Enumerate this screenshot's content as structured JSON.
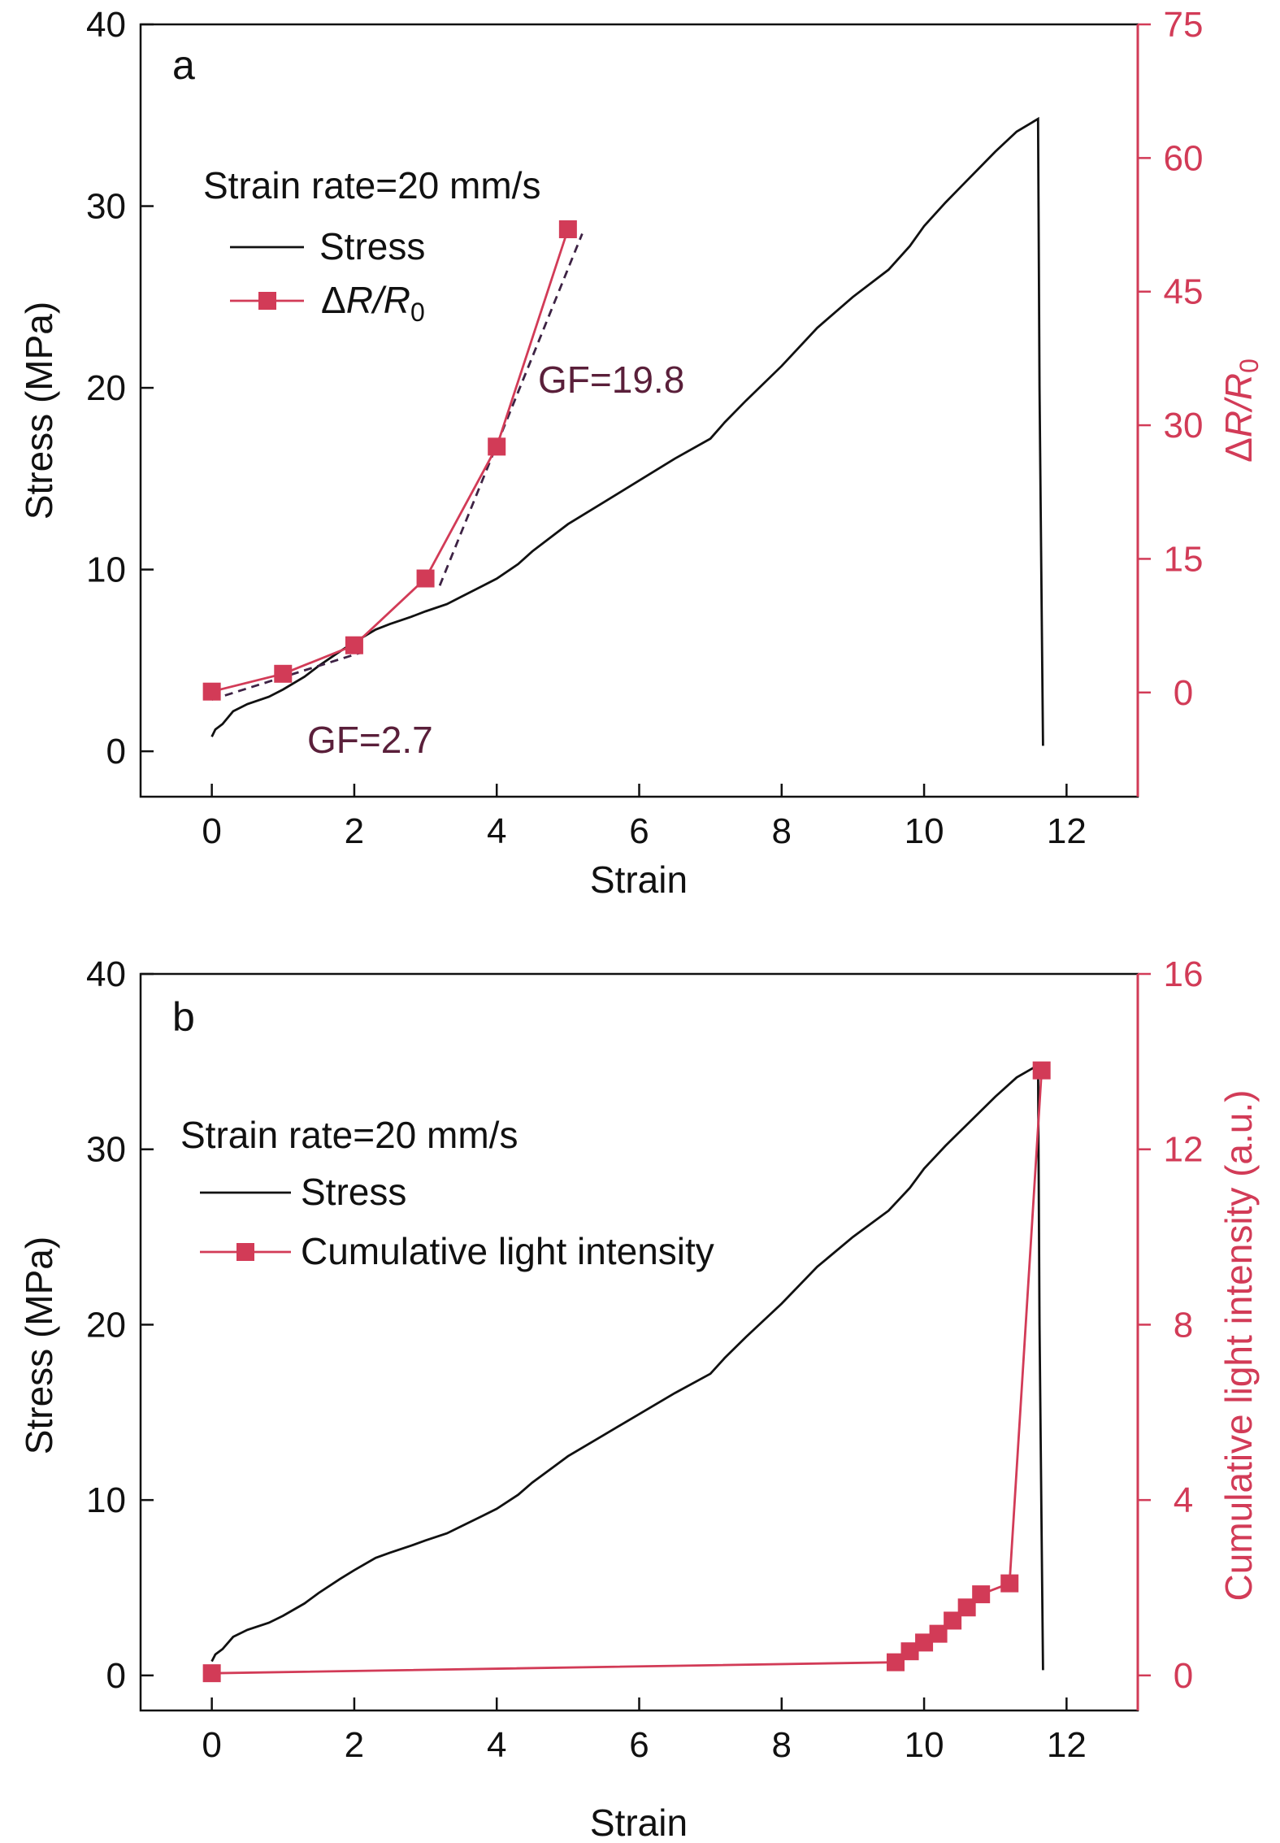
{
  "colors": {
    "stress": "#111111",
    "series": "#d23b57",
    "dashed": "#3d2244",
    "annotation": "#5a1f3a"
  },
  "chart_data": [
    {
      "panel_label": "a",
      "type": "line",
      "xlabel": "Strain",
      "ylabel": "Stress (MPa)",
      "y2label_parts": [
        "Δ",
        "R",
        "/",
        "R",
        "0"
      ],
      "xlim": [
        -1,
        13
      ],
      "ylim": [
        -2.5,
        40
      ],
      "y2lim": [
        -11.7,
        75
      ],
      "xticks": [
        0,
        2,
        4,
        6,
        8,
        10,
        12
      ],
      "yticks": [
        0,
        10,
        20,
        30,
        40
      ],
      "y2ticks": [
        0,
        15,
        30,
        45,
        60,
        75
      ],
      "legend": {
        "title": "Strain rate=20 mm/s",
        "stress_label": "Stress",
        "series_label_parts": [
          "Δ",
          "R",
          "/",
          "R",
          "0"
        ]
      },
      "stress_series": {
        "name": "Stress",
        "x": [
          0,
          0.05,
          0.15,
          0.3,
          0.5,
          0.8,
          1.0,
          1.3,
          1.5,
          1.8,
          2.0,
          2.3,
          2.5,
          2.8,
          3.0,
          3.3,
          3.5,
          3.8,
          4.0,
          4.3,
          4.5,
          4.8,
          5.0,
          5.5,
          6.0,
          6.5,
          7.0,
          7.2,
          7.5,
          8.0,
          8.5,
          9.0,
          9.5,
          9.8,
          10.0,
          10.3,
          10.5,
          10.8,
          11.0,
          11.3,
          11.6,
          11.62,
          11.65,
          11.67
        ],
        "y": [
          0.8,
          1.2,
          1.5,
          2.2,
          2.6,
          3.0,
          3.4,
          4.1,
          4.7,
          5.5,
          6.0,
          6.7,
          7.0,
          7.4,
          7.7,
          8.1,
          8.5,
          9.1,
          9.5,
          10.3,
          11.0,
          11.9,
          12.5,
          13.7,
          14.9,
          16.1,
          17.2,
          18.1,
          19.3,
          21.2,
          23.3,
          25.0,
          26.5,
          27.8,
          28.9,
          30.2,
          31.0,
          32.2,
          33.0,
          34.1,
          34.8,
          20.0,
          8.0,
          0.3
        ]
      },
      "resistance_series": {
        "name": "ΔR/R0",
        "x": [
          0,
          1,
          2,
          3,
          4,
          5
        ],
        "y": [
          0.1,
          2.1,
          5.3,
          12.8,
          27.6,
          52.0
        ]
      },
      "fits": [
        {
          "label": "GF=2.7",
          "x": [
            0,
            2.1
          ],
          "y": [
            -0.8,
            4.5
          ]
        },
        {
          "label": "GF=19.8",
          "x": [
            3.2,
            5.2
          ],
          "y": [
            12.0,
            51.5
          ]
        }
      ]
    },
    {
      "panel_label": "b",
      "type": "line",
      "xlabel": "Strain",
      "ylabel": "Stress (MPa)",
      "y2label": "Cumulative light intensity (a.u.)",
      "xlim": [
        -1,
        13
      ],
      "ylim": [
        -2,
        40
      ],
      "y2lim": [
        -0.8,
        16
      ],
      "xticks": [
        0,
        2,
        4,
        6,
        8,
        10,
        12
      ],
      "yticks": [
        0,
        10,
        20,
        30,
        40
      ],
      "y2ticks": [
        0,
        4,
        8,
        12,
        16
      ],
      "legend": {
        "title": "Strain rate=20 mm/s",
        "stress_label": "Stress",
        "series_label": "Cumulative light intensity"
      },
      "stress_series": {
        "name": "Stress",
        "x": [
          0,
          0.05,
          0.15,
          0.3,
          0.5,
          0.8,
          1.0,
          1.3,
          1.5,
          1.8,
          2.0,
          2.3,
          2.5,
          2.8,
          3.0,
          3.3,
          3.5,
          3.8,
          4.0,
          4.3,
          4.5,
          4.8,
          5.0,
          5.5,
          6.0,
          6.5,
          7.0,
          7.2,
          7.5,
          8.0,
          8.5,
          9.0,
          9.5,
          9.8,
          10.0,
          10.3,
          10.5,
          10.8,
          11.0,
          11.3,
          11.6,
          11.62,
          11.65,
          11.67
        ],
        "y": [
          0.8,
          1.2,
          1.5,
          2.2,
          2.6,
          3.0,
          3.4,
          4.1,
          4.7,
          5.5,
          6.0,
          6.7,
          7.0,
          7.4,
          7.7,
          8.1,
          8.5,
          9.1,
          9.5,
          10.3,
          11.0,
          11.9,
          12.5,
          13.7,
          14.9,
          16.1,
          17.2,
          18.1,
          19.3,
          21.2,
          23.3,
          25.0,
          26.5,
          27.8,
          28.9,
          30.2,
          31.0,
          32.2,
          33.0,
          34.1,
          34.8,
          20.0,
          8.0,
          0.3
        ]
      },
      "light_series": {
        "name": "Cumulative light intensity",
        "x": [
          0,
          9.6,
          9.8,
          10.0,
          10.2,
          10.4,
          10.6,
          10.8,
          11.2,
          11.65
        ],
        "y": [
          0.05,
          0.3,
          0.55,
          0.75,
          0.95,
          1.25,
          1.55,
          1.85,
          2.1,
          13.8
        ]
      }
    }
  ]
}
